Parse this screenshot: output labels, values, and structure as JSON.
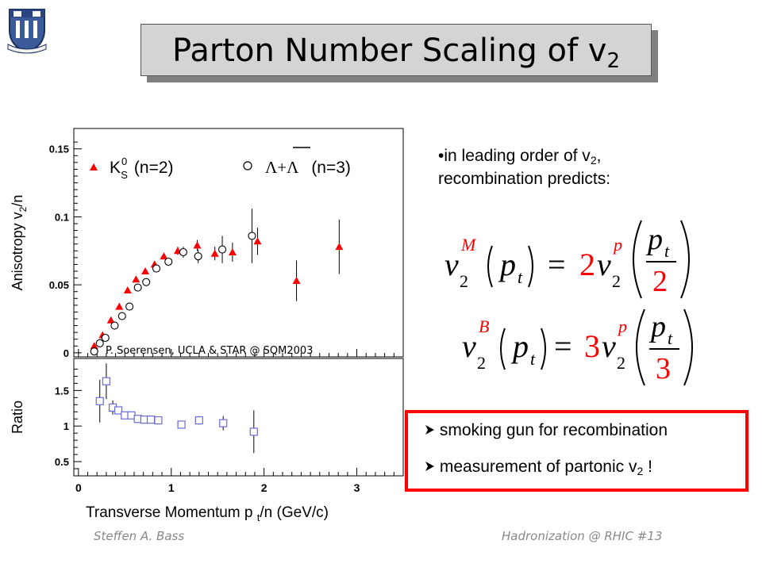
{
  "slide": {
    "title_main": "Parton Number Scaling of v",
    "title_sub": "2",
    "footer_left": "Steffen A. Bass",
    "footer_right": "Hadronization @ RHIC  #13"
  },
  "bullet": {
    "line1_prefix": "in leading order of v",
    "line1_sub": "2",
    "line1_suffix": ",",
    "line2": "recombination predicts:"
  },
  "formulas": [
    {
      "superscript": "M",
      "factor": "2",
      "denominator": "2"
    },
    {
      "superscript": "B",
      "factor": "3",
      "denominator": "3"
    }
  ],
  "highlight_box": {
    "item1": "smoking gun for recombination",
    "item2_prefix": "measurement of partonic v",
    "item2_sub": "2",
    "item2_suffix": " !"
  },
  "colors": {
    "red": "#ff0000",
    "square_blue": "#6a6ad8",
    "title_bg": "#d4d4d4"
  },
  "chart_data": [
    {
      "type": "scatter",
      "ylabel": "Anisotropy v2/n",
      "ylim": [
        -0.003,
        0.165
      ],
      "yticks": [
        "0",
        "0.05",
        "0.1",
        "0.15"
      ],
      "credit": "P. Soerensen, UCLA & STAR @ SQM2003",
      "legend": [
        "K⁰S (n=2)",
        "Λ+Λ̄ (n=3)"
      ],
      "series": [
        {
          "name": "K0S (n=2)",
          "marker": "filled-triangle",
          "points": [
            [
              0.17,
              0.005
            ],
            [
              0.26,
              0.013
            ],
            [
              0.35,
              0.024
            ],
            [
              0.44,
              0.034
            ],
            [
              0.53,
              0.046
            ],
            [
              0.62,
              0.054
            ],
            [
              0.72,
              0.06
            ],
            [
              0.82,
              0.065
            ],
            [
              0.92,
              0.071
            ],
            [
              1.07,
              0.075
            ],
            [
              1.28,
              0.079
            ],
            [
              1.47,
              0.073
            ],
            [
              1.66,
              0.074
            ],
            [
              1.93,
              0.082
            ],
            [
              2.35,
              0.053
            ],
            [
              2.81,
              0.078
            ]
          ],
          "errors": [
            0.001,
            0.001,
            0.001,
            0.001,
            0.001,
            0.001,
            0.002,
            0.002,
            0.002,
            0.003,
            0.004,
            0.005,
            0.007,
            0.01,
            0.015,
            0.02
          ]
        },
        {
          "name": "Lambda+AntiLambda (n=3)",
          "marker": "open-circle",
          "points": [
            [
              0.17,
              0.001
            ],
            [
              0.23,
              0.007
            ],
            [
              0.29,
              0.011
            ],
            [
              0.39,
              0.02
            ],
            [
              0.47,
              0.027
            ],
            [
              0.55,
              0.034
            ],
            [
              0.64,
              0.048
            ],
            [
              0.73,
              0.052
            ],
            [
              0.84,
              0.062
            ],
            [
              0.97,
              0.067
            ],
            [
              1.13,
              0.074
            ],
            [
              1.29,
              0.071
            ],
            [
              1.55,
              0.076
            ],
            [
              1.87,
              0.086
            ]
          ],
          "errors": [
            0.001,
            0.001,
            0.001,
            0.001,
            0.001,
            0.001,
            0.002,
            0.002,
            0.002,
            0.003,
            0.004,
            0.005,
            0.01,
            0.02
          ]
        }
      ]
    },
    {
      "type": "scatter",
      "ylabel": "Ratio",
      "xlabel": "Transverse Momentum p t/n (GeV/c)",
      "xlim": [
        -0.05,
        3.5
      ],
      "xticks": [
        "0",
        "1",
        "2",
        "3"
      ],
      "ylim": [
        0.3,
        1.95
      ],
      "yticks": [
        "0.5",
        "1",
        "1.5"
      ],
      "series": [
        {
          "name": "ratio",
          "marker": "open-square",
          "points": [
            [
              0.23,
              1.35
            ],
            [
              0.3,
              1.63
            ],
            [
              0.37,
              1.26
            ],
            [
              0.43,
              1.22
            ],
            [
              0.5,
              1.15
            ],
            [
              0.57,
              1.15
            ],
            [
              0.64,
              1.1
            ],
            [
              0.71,
              1.09
            ],
            [
              0.78,
              1.09
            ],
            [
              0.86,
              1.08
            ],
            [
              1.11,
              1.02
            ],
            [
              1.3,
              1.08
            ],
            [
              1.56,
              1.04
            ],
            [
              1.89,
              0.92
            ]
          ],
          "errors": [
            0.3,
            0.25,
            0.1,
            0.05,
            0.04,
            0.04,
            0.04,
            0.04,
            0.04,
            0.04,
            0.05,
            0.06,
            0.1,
            0.3
          ]
        }
      ]
    }
  ]
}
